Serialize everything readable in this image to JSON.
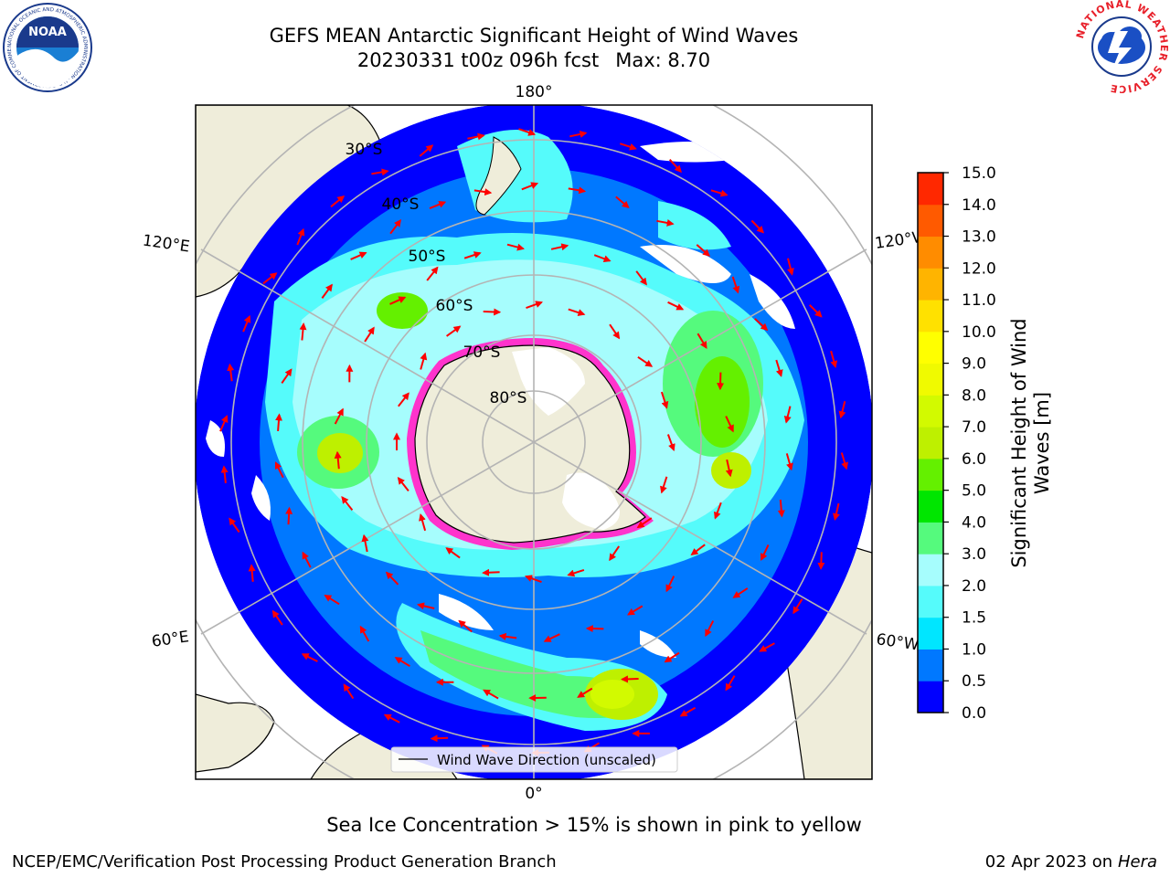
{
  "header": {
    "title": "GEFS MEAN Antarctic Significant Height of Wind Waves",
    "run": "20230331 t00z 096h fcst",
    "max": "Max: 8.70"
  },
  "logos": {
    "left": "NOAA",
    "left_ring_text": "NATIONAL OCEANIC AND ATMOSPHERIC ADMINISTRATION · U.S. DEPARTMENT OF COMMERCE",
    "right_ring_text": "NATIONAL WEATHER SERVICE"
  },
  "map": {
    "longitude_labels": [
      "180°",
      "120°E",
      "120°W",
      "60°E",
      "60°W",
      "0°"
    ],
    "latitude_labels": [
      "30°S",
      "40°S",
      "50°S",
      "60°S",
      "70°S",
      "80°S"
    ],
    "legend_label": "Wind Wave Direction (unscaled)",
    "colors": {
      "land": "#efedda",
      "ice_edge": "#ff33cc",
      "arrow": "#ff0000",
      "grid": "#b4b4b4"
    }
  },
  "colorbar": {
    "label": "Significant Height of Wind Waves [m]",
    "ticks": [
      "0.0",
      "0.5",
      "1.0",
      "1.5",
      "2.0",
      "3.0",
      "4.0",
      "5.0",
      "6.0",
      "7.0",
      "8.0",
      "9.0",
      "10.0",
      "11.0",
      "12.0",
      "13.0",
      "14.0",
      "15.0"
    ],
    "colors": [
      "#0000ff",
      "#0078ff",
      "#00e6ff",
      "#55fbfb",
      "#a6fdfd",
      "#55fa7d",
      "#00e600",
      "#64f000",
      "#bef000",
      "#d2fa00",
      "#f0fa00",
      "#ffff00",
      "#ffe100",
      "#ffb400",
      "#ff8c00",
      "#ff5a00",
      "#ff2800"
    ]
  },
  "ice_note": "Sea Ice Concentration > 15% is shown in pink to yellow",
  "footer": {
    "left": "NCEP/EMC/Verification Post Processing Product Generation Branch",
    "right_date": "02 Apr 2023 on",
    "right_host": "Hera"
  }
}
